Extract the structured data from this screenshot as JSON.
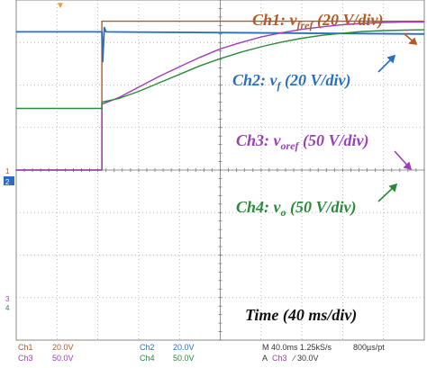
{
  "chart_data": {
    "type": "line",
    "title": "",
    "x_label": "Time (40 ms/div)",
    "x_div": 10,
    "y_div": 8,
    "grid": true,
    "series": [
      {
        "name": "Ch1: v_fref (20 V/div)",
        "channel": "Ch1",
        "color": "#b05a2a",
        "label_main": "Ch1: v",
        "label_sub": "fref",
        "label_tail": " (20 V/div)",
        "x_div": [
          0,
          2.1,
          2.1,
          2.12,
          2.16,
          10.0
        ],
        "y_div": [
          0,
          0,
          3.5,
          3.5,
          3.5,
          3.5
        ]
      },
      {
        "name": "Ch2: v_f (20 V/div)",
        "channel": "Ch2",
        "color": "#2a6fbf",
        "label_main": "Ch2: v",
        "label_sub": "f",
        "label_tail": " (20 V/div)",
        "x_div": [
          0,
          2.08,
          2.1,
          2.12,
          2.16,
          2.2,
          10.0
        ],
        "y_div": [
          3.25,
          3.25,
          3.25,
          2.55,
          3.35,
          3.25,
          3.2
        ]
      },
      {
        "name": "Ch3: v_oref (50 V/div)",
        "channel": "Ch3",
        "color": "#9b3fb8",
        "label_main": "Ch3: v",
        "label_sub": "oref",
        "label_tail": " (50 V/div)",
        "x_div": [
          0,
          2.1,
          2.1,
          2.5,
          3.0,
          3.5,
          4.0,
          4.5,
          5.0,
          5.5,
          6.0,
          6.5,
          7.0,
          7.5,
          8.0,
          8.5,
          9.0,
          9.5,
          10.0
        ],
        "y_div": [
          0,
          0,
          1.55,
          1.7,
          1.95,
          2.2,
          2.43,
          2.65,
          2.85,
          3.0,
          3.13,
          3.23,
          3.31,
          3.37,
          3.42,
          3.45,
          3.47,
          3.48,
          3.48
        ]
      },
      {
        "name": "Ch4: v_o (50 V/div)",
        "channel": "Ch4",
        "color": "#2a8a3a",
        "label_main": "Ch4: v",
        "label_sub": "o",
        "label_tail": " (50 V/div)",
        "x_div": [
          0,
          2.1,
          2.1,
          2.5,
          3.0,
          3.5,
          4.0,
          4.5,
          5.0,
          5.5,
          6.0,
          6.5,
          7.0,
          7.5,
          8.0,
          8.5,
          9.0,
          9.5,
          10.0
        ],
        "y_div": [
          1.45,
          1.45,
          1.6,
          1.68,
          1.85,
          2.05,
          2.25,
          2.45,
          2.62,
          2.77,
          2.9,
          3.01,
          3.1,
          3.17,
          3.22,
          3.26,
          3.28,
          3.29,
          3.3
        ]
      }
    ]
  },
  "scope": {
    "ch_markers": [
      "1",
      "2",
      "3",
      "4"
    ],
    "trig_marker": "▼",
    "timebase_label": "Time (40 ms/div)"
  },
  "readout": {
    "ch1": "Ch1",
    "ch1_scale": "20.0V",
    "ch2": "Ch2",
    "ch2_scale": "20.0V",
    "ch3": "Ch3",
    "ch3_scale": "50.0V",
    "ch4": "Ch4",
    "ch4_scale": "50.0V",
    "timebase": "M 40.0ms 1.25kS/s",
    "resolution": "800µs/pt",
    "trigger_prefix": "A",
    "trigger_ch": "Ch3",
    "trigger_level": "∕ 30.0V"
  },
  "colors": {
    "grid": "#a8a8a8",
    "ch1": "#b05a2a",
    "ch2": "#2a6fbf",
    "ch3": "#9b3fb8",
    "ch4": "#2a8a3a",
    "trig": "#f0a030"
  }
}
